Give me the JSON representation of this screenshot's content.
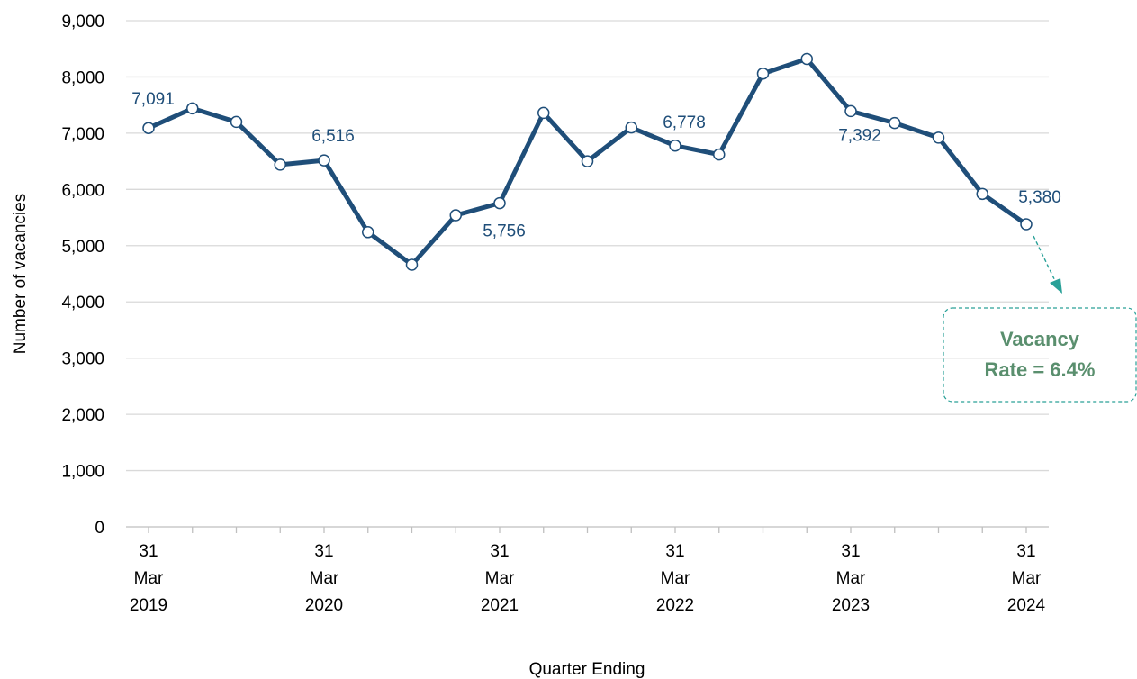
{
  "chart_data": {
    "type": "line",
    "y_label": "Number of vacancies",
    "x_label": "Quarter Ending",
    "categories": [
      "31 Mar 2019",
      null,
      null,
      null,
      "31 Mar 2020",
      null,
      null,
      null,
      "31 Mar 2021",
      null,
      null,
      null,
      "31 Mar 2022",
      null,
      null,
      null,
      "31 Mar 2023",
      null,
      null,
      null,
      "31 Mar 2024"
    ],
    "series": [
      {
        "name": "Vacancies",
        "color": "#1f4e79",
        "values": [
          7091,
          7440,
          7200,
          6440,
          6516,
          5240,
          4660,
          5540,
          5756,
          7360,
          6500,
          7100,
          6778,
          6620,
          8060,
          8320,
          7392,
          7180,
          6920,
          5920,
          5380
        ],
        "value_labels": [
          "7,091",
          null,
          null,
          null,
          "6,516",
          null,
          null,
          null,
          "5,756",
          null,
          null,
          null,
          "6,778",
          null,
          null,
          null,
          "7,392",
          null,
          null,
          null,
          "5,380"
        ]
      }
    ],
    "ylim": [
      0,
      9000
    ],
    "yticks": [
      0,
      {
        "value": 1000,
        "label": "1,000"
      },
      {
        "value": 2000,
        "label": "2,000"
      },
      {
        "value": 3000,
        "label": "3,000"
      },
      {
        "value": 4000,
        "label": "4,000"
      },
      {
        "value": 5000,
        "label": "5,000"
      },
      {
        "value": 6000,
        "label": "6,000"
      },
      {
        "value": 7000,
        "label": "7,000"
      },
      {
        "value": 8000,
        "label": "8,000"
      },
      {
        "value": 9000,
        "label": "9,000"
      }
    ],
    "grid": true,
    "annotation": "Vacancy Rate = 6.4%"
  }
}
